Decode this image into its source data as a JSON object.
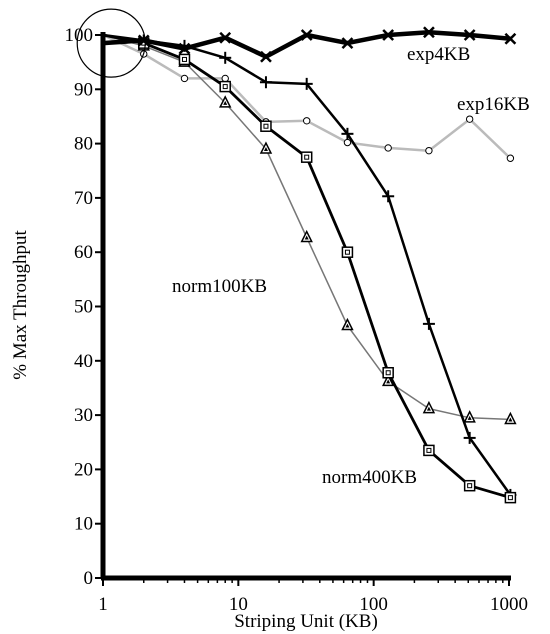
{
  "chart_data": {
    "type": "line",
    "title": "",
    "xlabel": "Striping Unit (KB)",
    "ylabel": "% Max Throughput",
    "xscale": "log",
    "xlim": [
      1,
      1000
    ],
    "ylim": [
      0,
      100
    ],
    "xticks": [
      1,
      10,
      100,
      1000
    ],
    "xtick_labels": [
      "1",
      "10",
      "100",
      "1000"
    ],
    "yticks": [
      0,
      10,
      20,
      30,
      40,
      50,
      60,
      70,
      80,
      90,
      100
    ],
    "ytick_labels": [
      "0",
      "10",
      "20",
      "30",
      "40",
      "50",
      "60",
      "70",
      "80",
      "90",
      "100"
    ],
    "grid": false,
    "legend": "none",
    "annotations": [
      "circle around x=1, y≈98"
    ],
    "series": [
      {
        "name": "exp4KB",
        "marker": "x",
        "color": "#000000",
        "x": [
          1,
          2,
          4,
          8,
          16,
          32,
          64,
          128,
          256,
          512,
          1024
        ],
        "y": [
          98.5,
          99.0,
          97.5,
          99.5,
          96.0,
          100.0,
          98.5,
          100.0,
          100.5,
          100.0,
          99.3
        ]
      },
      {
        "name": "exp16KB",
        "marker": "circle",
        "color": "#bbbbbb",
        "x": [
          1,
          2,
          4,
          8,
          16,
          32,
          64,
          128,
          256,
          512,
          1024
        ],
        "y": [
          100.0,
          96.5,
          92.0,
          92.0,
          84.0,
          84.2,
          80.2,
          79.2,
          78.7,
          84.5,
          77.3
        ]
      },
      {
        "name": "",
        "marker": "plus",
        "color": "#000000",
        "x": [
          1,
          2,
          4,
          8,
          16,
          32,
          64,
          128,
          256,
          512,
          1024
        ],
        "y": [
          100.0,
          99.0,
          98.0,
          95.8,
          91.3,
          91.0,
          81.8,
          70.3,
          46.8,
          25.8,
          15.3
        ]
      },
      {
        "name": "norm100KB",
        "marker": "triangle",
        "color": "#777777",
        "x": [
          1,
          2,
          4,
          8,
          16,
          32,
          64,
          128,
          256,
          512,
          1024
        ],
        "y": [
          100.0,
          98.0,
          95.0,
          87.5,
          79.0,
          62.7,
          46.5,
          36.2,
          31.2,
          29.5,
          29.2
        ]
      },
      {
        "name": "norm400KB",
        "marker": "square",
        "color": "#000000",
        "x": [
          1,
          2,
          4,
          8,
          16,
          32,
          64,
          128,
          256,
          512,
          1024
        ],
        "y": [
          100.0,
          98.5,
          95.5,
          90.5,
          83.2,
          77.5,
          60.0,
          37.8,
          23.5,
          17.0,
          14.8
        ]
      }
    ]
  }
}
